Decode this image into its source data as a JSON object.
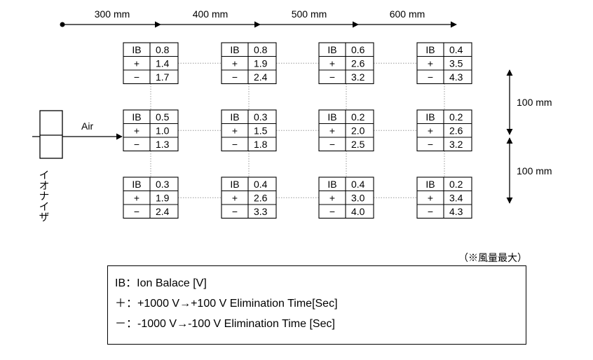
{
  "distances_x": [
    "300 mm",
    "400 mm",
    "500 mm",
    "600 mm"
  ],
  "distances_y": [
    "100 mm",
    "100 mm"
  ],
  "air_label": "Air",
  "device_label": "イオナイザ",
  "note": "（※風量最大）",
  "row_symbols": [
    "IB",
    "+",
    "−"
  ],
  "grid": [
    [
      [
        0.8,
        1.4,
        1.7
      ],
      [
        0.8,
        1.9,
        2.4
      ],
      [
        0.6,
        2.6,
        3.2
      ],
      [
        0.4,
        3.5,
        4.3
      ]
    ],
    [
      [
        0.5,
        1.0,
        1.3
      ],
      [
        0.3,
        1.5,
        1.8
      ],
      [
        0.2,
        2.0,
        2.5
      ],
      [
        0.2,
        2.6,
        3.2
      ]
    ],
    [
      [
        0.3,
        1.9,
        2.4
      ],
      [
        0.4,
        2.6,
        3.3
      ],
      [
        0.4,
        3.0,
        4.0
      ],
      [
        0.2,
        3.4,
        4.3
      ]
    ]
  ],
  "legend": [
    {
      "key": "IB",
      "sep": "：",
      "text": "Ion Balace [V]"
    },
    {
      "key": "＋",
      "sep": "：",
      "text": "+1000 V→+100 V Elimination Time[Sec]"
    },
    {
      "key": "－",
      "sep": "：",
      "text": "-1000 V→-100 V Elimination Time [Sec]"
    }
  ]
}
